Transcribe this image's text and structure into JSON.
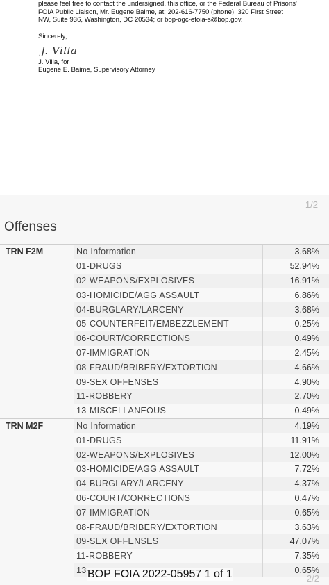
{
  "letter": {
    "paragraph_lines": [
      "please feel free to contact the undersigned, this office, or the Federal Bureau of Prisons'",
      "FOIA Public Liaison, Mr. Eugene Baime, at: 202-616-7750 (phone); 320 First Street",
      "NW, Suite 936, Washington, DC 20534; or bop-ogc-efoia-s@bop.gov."
    ],
    "closing": "Sincerely,",
    "signature": "J. Villa",
    "signer_line1": "J. Villa, for",
    "signer_line2": "Eugene E. Baime, Supervisory Attorney"
  },
  "screenshot": {
    "page_indicator": "1/2",
    "heading": "Offenses",
    "groups": [
      {
        "label": "TRN F2M",
        "rows": [
          {
            "category": "No Information",
            "value": "3.68%"
          },
          {
            "category": "01-DRUGS",
            "value": "52.94%"
          },
          {
            "category": "02-WEAPONS/EXPLOSIVES",
            "value": "16.91%"
          },
          {
            "category": "03-HOMICIDE/AGG ASSAULT",
            "value": "6.86%"
          },
          {
            "category": "04-BURGLARY/LARCENY",
            "value": "3.68%"
          },
          {
            "category": "05-COUNTERFEIT/EMBEZZLEMENT",
            "value": "0.25%"
          },
          {
            "category": "06-COURT/CORRECTIONS",
            "value": "0.49%"
          },
          {
            "category": "07-IMMIGRATION",
            "value": "2.45%"
          },
          {
            "category": "08-FRAUD/BRIBERY/EXTORTION",
            "value": "4.66%"
          },
          {
            "category": "09-SEX OFFENSES",
            "value": "4.90%"
          },
          {
            "category": "11-ROBBERY",
            "value": "2.70%"
          },
          {
            "category": "13-MISCELLANEOUS",
            "value": "0.49%"
          }
        ]
      },
      {
        "label": "TRN M2F",
        "rows": [
          {
            "category": "No Information",
            "value": "4.19%"
          },
          {
            "category": "01-DRUGS",
            "value": "11.91%"
          },
          {
            "category": "02-WEAPONS/EXPLOSIVES",
            "value": "12.00%"
          },
          {
            "category": "03-HOMICIDE/AGG ASSAULT",
            "value": "7.72%"
          },
          {
            "category": "04-BURGLARY/LARCENY",
            "value": "4.37%"
          },
          {
            "category": "06-COURT/CORRECTIONS",
            "value": "0.47%"
          },
          {
            "category": "07-IMMIGRATION",
            "value": "0.65%"
          },
          {
            "category": "08-FRAUD/BRIBERY/EXTORTION",
            "value": "3.63%"
          },
          {
            "category": "09-SEX OFFENSES",
            "value": "47.07%"
          },
          {
            "category": "11-ROBBERY",
            "value": "7.35%"
          },
          {
            "category": "13-",
            "value": "0.65%"
          }
        ]
      }
    ],
    "bottom_page_indicator": "2/2"
  },
  "footer": "BOP FOIA 2022-05957 1 of 1"
}
